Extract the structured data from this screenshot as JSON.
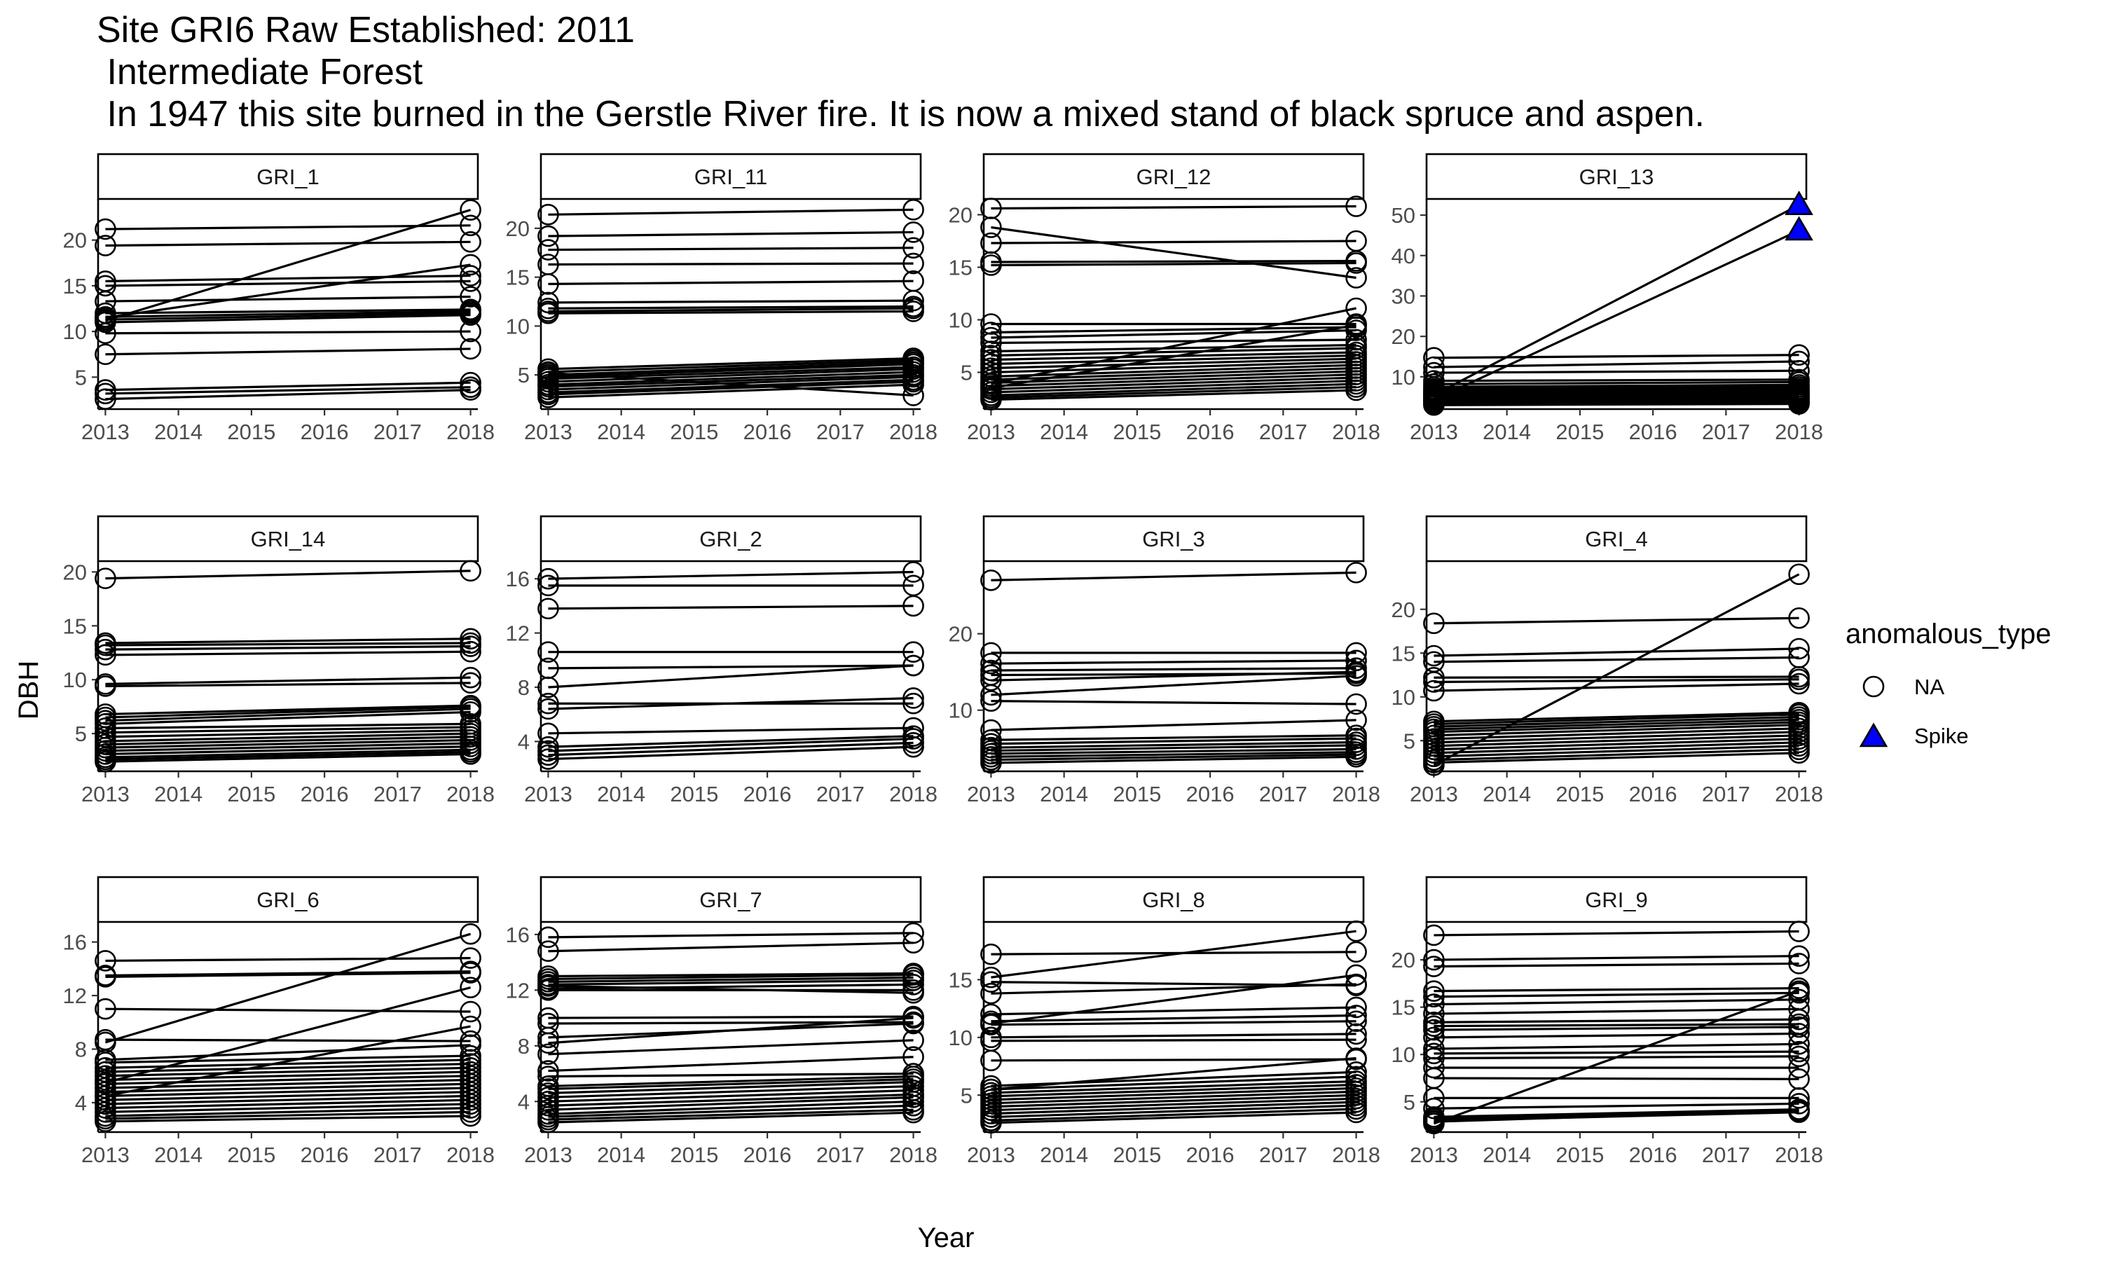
{
  "chart_data": {
    "type": "line",
    "title": "Site GRI6 Raw Established: 2011",
    "subtitle": [
      " Intermediate Forest",
      " In 1947 this site burned in the Gerstle River fire. It is now a mixed stand of black spruce and aspen."
    ],
    "xlabel": "Year",
    "ylabel": "DBH",
    "x_ticks": [
      "2013",
      "2014",
      "2015",
      "2016",
      "2017",
      "2018"
    ],
    "xlim": [
      2012.9,
      2018.1
    ],
    "legend": {
      "title": "anomalous_type",
      "placement": "right",
      "entries": [
        {
          "label": "NA",
          "shape": "open-circle"
        },
        {
          "label": "Spike",
          "shape": "filled-triangle",
          "color": "#0000ff"
        }
      ]
    },
    "colors": {
      "line": "#000000",
      "spike_fill": "#0000ff",
      "strip_border": "#000000"
    },
    "panels": [
      {
        "name": "GRI_1",
        "ylim": [
          1.5,
          24.5
        ],
        "yticks": [
          5,
          10,
          15,
          20
        ],
        "pairs": [
          [
            21.2,
            21.6
          ],
          [
            19.4,
            19.8
          ],
          [
            15.5,
            16.1
          ],
          [
            15.0,
            15.5
          ],
          [
            13.3,
            13.8
          ],
          [
            12.0,
            12.4
          ],
          [
            11.6,
            12.2
          ],
          [
            11.3,
            12.0
          ],
          [
            11.0,
            11.8
          ],
          [
            9.8,
            10.0
          ],
          [
            7.5,
            8.1
          ],
          [
            3.6,
            4.4
          ],
          [
            3.2,
            3.9
          ],
          [
            2.6,
            3.6
          ],
          [
            11.5,
            17.3
          ],
          [
            11.2,
            23.3
          ]
        ]
      },
      {
        "name": "GRI_11",
        "ylim": [
          1.5,
          23
        ],
        "yticks": [
          5,
          10,
          15,
          20
        ],
        "pairs": [
          [
            21.4,
            21.9
          ],
          [
            19.2,
            19.6
          ],
          [
            17.8,
            18.0
          ],
          [
            16.3,
            16.4
          ],
          [
            14.3,
            14.6
          ],
          [
            12.4,
            12.6
          ],
          [
            11.8,
            12.0
          ],
          [
            11.5,
            11.8
          ],
          [
            11.3,
            11.5
          ],
          [
            5.6,
            6.7
          ],
          [
            5.3,
            6.5
          ],
          [
            5.0,
            6.3
          ],
          [
            4.8,
            6.1
          ],
          [
            4.6,
            5.8
          ],
          [
            4.3,
            5.6
          ],
          [
            4.0,
            5.3
          ],
          [
            3.8,
            5.0
          ],
          [
            3.5,
            4.8
          ],
          [
            3.2,
            4.5
          ],
          [
            3.0,
            4.3
          ],
          [
            2.7,
            4.0
          ],
          [
            5.2,
            2.9
          ]
        ]
      },
      {
        "name": "GRI_12",
        "ylim": [
          1.5,
          21.5
        ],
        "yticks": [
          5,
          10,
          15,
          20
        ],
        "pairs": [
          [
            20.6,
            20.8
          ],
          [
            18.8,
            14.0
          ],
          [
            17.3,
            17.5
          ],
          [
            15.5,
            15.6
          ],
          [
            15.2,
            15.4
          ],
          [
            9.6,
            9.6
          ],
          [
            8.8,
            9.3
          ],
          [
            8.3,
            9.0
          ],
          [
            7.8,
            8.1
          ],
          [
            7.0,
            7.6
          ],
          [
            6.6,
            7.3
          ],
          [
            6.2,
            6.9
          ],
          [
            5.8,
            6.6
          ],
          [
            5.4,
            6.3
          ],
          [
            5.0,
            6.0
          ],
          [
            4.6,
            5.7
          ],
          [
            4.3,
            5.4
          ],
          [
            4.0,
            5.1
          ],
          [
            3.7,
            4.8
          ],
          [
            3.4,
            4.5
          ],
          [
            3.1,
            4.2
          ],
          [
            2.8,
            3.9
          ],
          [
            2.6,
            3.6
          ],
          [
            2.4,
            3.3
          ],
          [
            3.9,
            11.1
          ],
          [
            3.5,
            9.5
          ]
        ]
      },
      {
        "name": "GRI_13",
        "ylim": [
          2,
          54
        ],
        "yticks": [
          10,
          20,
          30,
          40,
          50
        ],
        "pairs": [
          [
            14.7,
            15.4
          ],
          [
            12.4,
            13.8
          ],
          [
            11.0,
            11.5
          ],
          [
            9.0,
            9.3
          ],
          [
            8.2,
            8.7
          ],
          [
            7.5,
            8.0
          ],
          [
            7.0,
            7.5
          ],
          [
            6.6,
            7.0
          ],
          [
            6.2,
            6.6
          ],
          [
            5.8,
            6.2
          ],
          [
            5.4,
            5.8
          ],
          [
            5.0,
            5.4
          ],
          [
            4.6,
            5.0
          ],
          [
            4.3,
            4.6
          ],
          [
            4.0,
            4.3
          ],
          [
            3.6,
            3.9
          ],
          [
            3.3,
            3.6
          ],
          [
            3.0,
            3.3
          ]
        ],
        "spikes": [
          [
            5.5,
            52.5
          ],
          [
            4.3,
            46.2
          ]
        ]
      },
      {
        "name": "GRI_14",
        "ylim": [
          1.5,
          21
        ],
        "yticks": [
          5,
          10,
          15,
          20
        ],
        "pairs": [
          [
            19.4,
            20.1
          ],
          [
            13.4,
            13.8
          ],
          [
            13.2,
            13.4
          ],
          [
            12.8,
            13.1
          ],
          [
            12.3,
            12.6
          ],
          [
            9.4,
            9.7
          ],
          [
            6.8,
            7.6
          ],
          [
            6.5,
            7.5
          ],
          [
            6.2,
            7.3
          ],
          [
            5.9,
            7.0
          ],
          [
            5.5,
            5.9
          ],
          [
            5.1,
            5.6
          ],
          [
            4.7,
            5.3
          ],
          [
            4.3,
            5.0
          ],
          [
            4.0,
            4.7
          ],
          [
            3.7,
            4.4
          ],
          [
            3.4,
            4.1
          ],
          [
            3.1,
            3.8
          ],
          [
            2.8,
            3.5
          ],
          [
            2.6,
            3.3
          ],
          [
            2.4,
            3.1
          ],
          [
            9.6,
            10.2
          ]
        ]
      },
      {
        "name": "GRI_2",
        "ylim": [
          1.8,
          17.3
        ],
        "yticks": [
          4,
          8,
          12,
          16
        ],
        "pairs": [
          [
            16.0,
            16.5
          ],
          [
            13.8,
            14.0
          ],
          [
            9.4,
            9.6
          ],
          [
            8.0,
            9.6
          ],
          [
            6.4,
            7.2
          ],
          [
            4.6,
            5.0
          ],
          [
            3.6,
            4.4
          ],
          [
            3.3,
            4.2
          ],
          [
            3.0,
            3.9
          ],
          [
            2.7,
            3.6
          ],
          [
            15.5,
            15.5
          ],
          [
            6.8,
            6.8
          ],
          [
            10.6,
            10.6
          ]
        ]
      },
      {
        "name": "GRI_3",
        "ylim": [
          2,
          29.5
        ],
        "yticks": [
          10,
          20
        ],
        "pairs": [
          [
            27.0,
            28.0
          ],
          [
            16.1,
            16.5
          ],
          [
            15.2,
            15.5
          ],
          [
            14.6,
            14.8
          ],
          [
            13.9,
            15.0
          ],
          [
            12.0,
            14.5
          ],
          [
            11.2,
            10.8
          ],
          [
            7.4,
            8.7
          ],
          [
            6.1,
            6.7
          ],
          [
            5.6,
            6.3
          ],
          [
            5.1,
            5.8
          ],
          [
            4.7,
            5.4
          ],
          [
            4.3,
            4.9
          ],
          [
            3.9,
            4.5
          ],
          [
            3.5,
            4.2
          ],
          [
            3.1,
            3.9
          ],
          [
            17.5,
            17.5
          ]
        ]
      },
      {
        "name": "GRI_4",
        "ylim": [
          1.5,
          25.5
        ],
        "yticks": [
          5,
          10,
          15,
          20
        ],
        "pairs": [
          [
            18.4,
            19.0
          ],
          [
            14.7,
            15.5
          ],
          [
            14.0,
            14.5
          ],
          [
            12.2,
            12.3
          ],
          [
            11.7,
            12.0
          ],
          [
            10.7,
            11.5
          ],
          [
            7.2,
            8.2
          ],
          [
            6.9,
            8.0
          ],
          [
            6.6,
            7.7
          ],
          [
            6.3,
            7.4
          ],
          [
            6.0,
            7.1
          ],
          [
            5.6,
            6.8
          ],
          [
            5.2,
            6.4
          ],
          [
            4.8,
            6.0
          ],
          [
            4.4,
            5.6
          ],
          [
            4.0,
            5.2
          ],
          [
            3.6,
            4.8
          ],
          [
            3.2,
            4.4
          ],
          [
            2.8,
            4.0
          ],
          [
            2.5,
            3.6
          ],
          [
            2.2,
            24.0
          ]
        ]
      },
      {
        "name": "GRI_6",
        "ylim": [
          1.8,
          17.5
        ],
        "yticks": [
          4,
          8,
          12,
          16
        ],
        "pairs": [
          [
            14.6,
            14.8
          ],
          [
            13.5,
            13.8
          ],
          [
            13.4,
            13.7
          ],
          [
            11.0,
            10.8
          ],
          [
            8.7,
            8.6
          ],
          [
            7.2,
            8.3
          ],
          [
            7.0,
            7.5
          ],
          [
            6.6,
            7.2
          ],
          [
            6.3,
            6.9
          ],
          [
            6.0,
            6.6
          ],
          [
            5.7,
            6.3
          ],
          [
            5.4,
            6.0
          ],
          [
            5.1,
            5.7
          ],
          [
            4.8,
            5.4
          ],
          [
            4.5,
            5.1
          ],
          [
            4.2,
            4.8
          ],
          [
            3.9,
            4.5
          ],
          [
            3.6,
            4.2
          ],
          [
            3.3,
            3.9
          ],
          [
            3.0,
            3.6
          ],
          [
            2.8,
            3.3
          ],
          [
            2.6,
            3.0
          ],
          [
            8.5,
            16.6
          ],
          [
            5.5,
            12.6
          ],
          [
            4.5,
            9.7
          ]
        ]
      },
      {
        "name": "GRI_7",
        "ylim": [
          1.8,
          16.9
        ],
        "yticks": [
          4,
          8,
          12,
          16
        ],
        "pairs": [
          [
            15.8,
            16.1
          ],
          [
            14.8,
            15.4
          ],
          [
            13.0,
            13.2
          ],
          [
            12.8,
            13.1
          ],
          [
            12.6,
            12.9
          ],
          [
            12.4,
            12.7
          ],
          [
            12.1,
            12.4
          ],
          [
            10.0,
            10.1
          ],
          [
            9.6,
            9.7
          ],
          [
            8.6,
            9.6
          ],
          [
            8.2,
            10.0
          ],
          [
            7.4,
            8.4
          ],
          [
            6.2,
            7.2
          ],
          [
            5.8,
            6.0
          ],
          [
            5.1,
            5.8
          ],
          [
            4.9,
            5.6
          ],
          [
            4.6,
            5.4
          ],
          [
            4.3,
            5.1
          ],
          [
            4.0,
            4.8
          ],
          [
            3.7,
            4.5
          ],
          [
            3.4,
            4.3
          ],
          [
            3.1,
            4.0
          ],
          [
            2.9,
            3.7
          ],
          [
            2.7,
            3.4
          ],
          [
            2.5,
            3.2
          ],
          [
            12.3,
            11.8
          ],
          [
            12.0,
            12.0
          ]
        ]
      },
      {
        "name": "GRI_8",
        "ylim": [
          1.8,
          20
        ],
        "yticks": [
          5,
          10,
          15
        ],
        "pairs": [
          [
            17.2,
            17.4
          ],
          [
            14.8,
            14.5
          ],
          [
            13.8,
            14.6
          ],
          [
            12.0,
            12.6
          ],
          [
            11.4,
            11.9
          ],
          [
            11.1,
            11.4
          ],
          [
            10.0,
            10.3
          ],
          [
            9.7,
            9.8
          ],
          [
            8.0,
            8.1
          ],
          [
            5.8,
            7.0
          ],
          [
            5.5,
            6.6
          ],
          [
            5.2,
            6.2
          ],
          [
            4.9,
            5.9
          ],
          [
            4.6,
            5.6
          ],
          [
            4.3,
            5.3
          ],
          [
            4.0,
            5.0
          ],
          [
            3.7,
            4.7
          ],
          [
            3.4,
            4.4
          ],
          [
            3.1,
            4.1
          ],
          [
            2.8,
            3.8
          ],
          [
            2.6,
            3.5
          ],
          [
            15.2,
            19.2
          ],
          [
            11.2,
            15.4
          ],
          [
            5.5,
            8.2
          ]
        ]
      },
      {
        "name": "GRI_9",
        "ylim": [
          1.8,
          24
        ],
        "yticks": [
          5,
          10,
          15,
          20
        ],
        "pairs": [
          [
            22.6,
            23.0
          ],
          [
            20.0,
            20.4
          ],
          [
            19.3,
            19.6
          ],
          [
            16.7,
            17.0
          ],
          [
            16.1,
            16.5
          ],
          [
            15.3,
            15.8
          ],
          [
            14.3,
            14.8
          ],
          [
            13.4,
            13.7
          ],
          [
            13.0,
            13.2
          ],
          [
            12.6,
            12.9
          ],
          [
            11.8,
            12.2
          ],
          [
            10.6,
            11.1
          ],
          [
            10.1,
            10.3
          ],
          [
            9.6,
            9.8
          ],
          [
            8.6,
            8.6
          ],
          [
            7.5,
            7.4
          ],
          [
            5.4,
            5.4
          ],
          [
            4.3,
            4.8
          ],
          [
            3.4,
            4.2
          ],
          [
            3.2,
            4.0
          ],
          [
            3.0,
            3.9
          ],
          [
            2.9,
            4.1
          ],
          [
            2.7,
            16.7
          ]
        ]
      }
    ]
  }
}
